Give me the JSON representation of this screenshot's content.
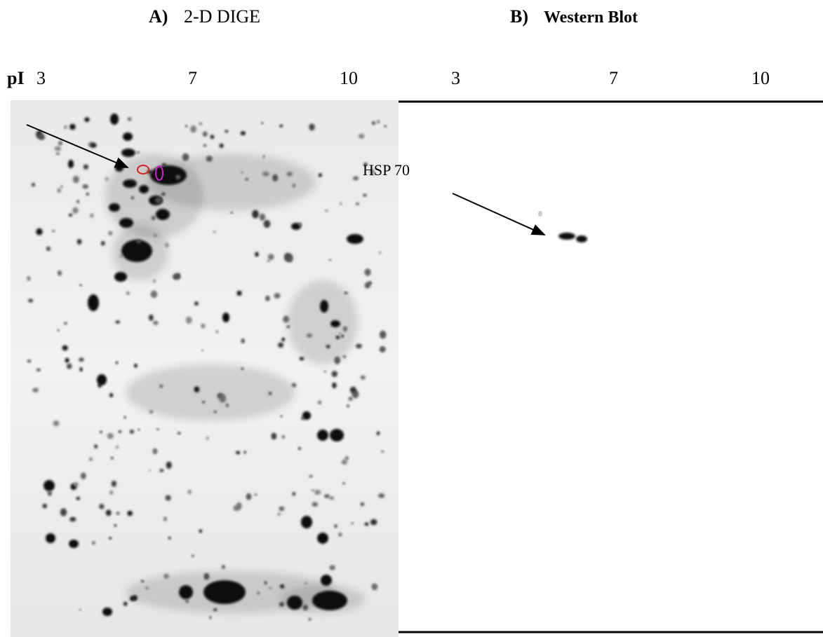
{
  "panels": [
    {
      "label": "A)",
      "title": "2-D DIGE",
      "axis_label": "pI",
      "ticks": [
        "3",
        "7",
        "10"
      ]
    },
    {
      "label": "B)",
      "title": "Western Blot",
      "ticks": [
        "3",
        "7",
        "10"
      ]
    }
  ],
  "annotation": "HSP 70"
}
